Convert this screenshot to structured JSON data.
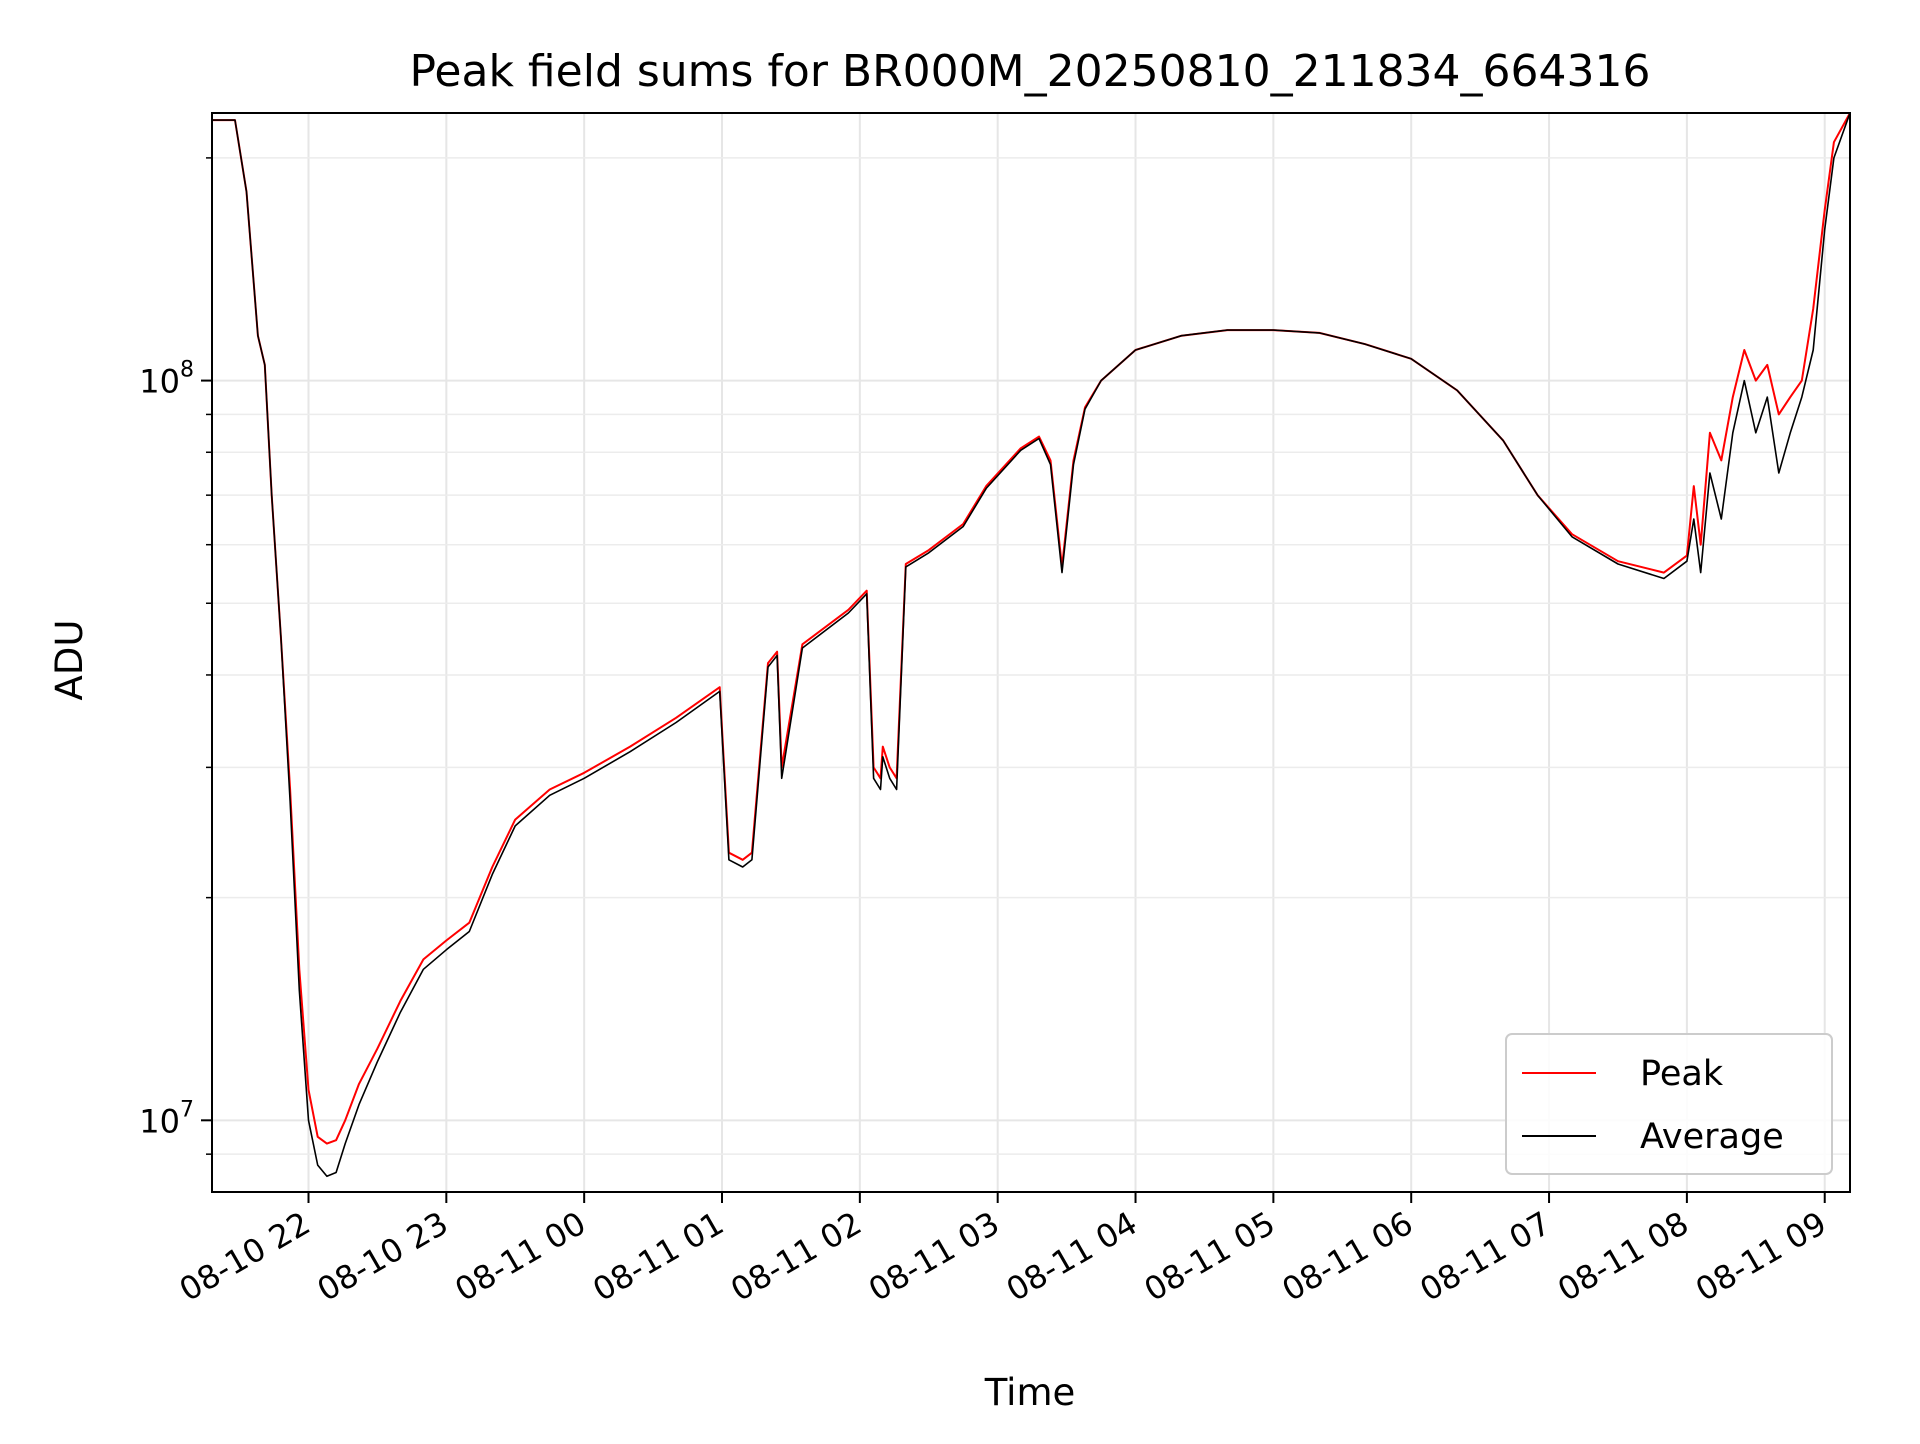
{
  "chart_data": {
    "type": "line",
    "title": "Peak field sums for BR000M_20250810_211834_664316",
    "xlabel": "Time",
    "ylabel": "ADU",
    "y_scale": "log",
    "ylim": [
      8000000,
      230000000
    ],
    "xlim": [
      "2025-08-10 21:18",
      "2025-08-11 09:11"
    ],
    "x_tick_labels": [
      "08-10 22",
      "08-10 23",
      "08-11 00",
      "08-11 01",
      "08-11 02",
      "08-11 03",
      "08-11 04",
      "08-11 05",
      "08-11 06",
      "08-11 07",
      "08-11 08",
      "08-11 09"
    ],
    "x_ticks": [
      "2025-08-10 22:00",
      "2025-08-10 23:00",
      "2025-08-11 00:00",
      "2025-08-11 01:00",
      "2025-08-11 02:00",
      "2025-08-11 03:00",
      "2025-08-11 04:00",
      "2025-08-11 05:00",
      "2025-08-11 06:00",
      "2025-08-11 07:00",
      "2025-08-11 08:00",
      "2025-08-11 09:00"
    ],
    "y_tick_labels": [
      {
        "base": "10",
        "exp": "7",
        "value": 10000000
      },
      {
        "base": "10",
        "exp": "8",
        "value": 100000000
      }
    ],
    "grid": true,
    "legend": "lower-right",
    "series": [
      {
        "name": "Peak",
        "color": "#ff0000",
        "x": [
          "2025-08-10 21:18",
          "2025-08-10 21:28",
          "2025-08-10 21:33",
          "2025-08-10 21:38",
          "2025-08-10 21:41",
          "2025-08-10 21:44",
          "2025-08-10 21:48",
          "2025-08-10 21:52",
          "2025-08-10 21:56",
          "2025-08-10 22:00",
          "2025-08-10 22:04",
          "2025-08-10 22:08",
          "2025-08-10 22:12",
          "2025-08-10 22:16",
          "2025-08-10 22:22",
          "2025-08-10 22:30",
          "2025-08-10 22:40",
          "2025-08-10 22:50",
          "2025-08-10 23:00",
          "2025-08-10 23:10",
          "2025-08-10 23:20",
          "2025-08-10 23:30",
          "2025-08-10 23:45",
          "2025-08-11 00:00",
          "2025-08-11 00:20",
          "2025-08-11 00:40",
          "2025-08-11 00:59",
          "2025-08-11 01:03",
          "2025-08-11 01:09",
          "2025-08-11 01:13",
          "2025-08-11 01:20",
          "2025-08-11 01:24",
          "2025-08-11 01:26",
          "2025-08-11 01:35",
          "2025-08-11 01:55",
          "2025-08-11 02:03",
          "2025-08-11 02:06",
          "2025-08-11 02:09",
          "2025-08-11 02:10",
          "2025-08-11 02:13",
          "2025-08-11 02:16",
          "2025-08-11 02:20",
          "2025-08-11 02:30",
          "2025-08-11 02:45",
          "2025-08-11 02:55",
          "2025-08-11 03:10",
          "2025-08-11 03:18",
          "2025-08-11 03:23",
          "2025-08-11 03:28",
          "2025-08-11 03:33",
          "2025-08-11 03:38",
          "2025-08-11 03:45",
          "2025-08-11 04:00",
          "2025-08-11 04:20",
          "2025-08-11 04:40",
          "2025-08-11 05:00",
          "2025-08-11 05:20",
          "2025-08-11 05:40",
          "2025-08-11 06:00",
          "2025-08-11 06:20",
          "2025-08-11 06:40",
          "2025-08-11 06:55",
          "2025-08-11 07:10",
          "2025-08-11 07:30",
          "2025-08-11 07:50",
          "2025-08-11 08:00",
          "2025-08-11 08:03",
          "2025-08-11 08:06",
          "2025-08-11 08:10",
          "2025-08-11 08:15",
          "2025-08-11 08:20",
          "2025-08-11 08:25",
          "2025-08-11 08:30",
          "2025-08-11 08:35",
          "2025-08-11 08:40",
          "2025-08-11 08:45",
          "2025-08-11 08:50",
          "2025-08-11 08:55",
          "2025-08-11 09:00",
          "2025-08-11 09:04",
          "2025-08-11 09:11"
        ],
        "values": [
          225000000,
          225000000,
          180000000,
          115000000,
          105000000,
          70000000,
          45000000,
          28000000,
          16000000,
          11000000,
          9500000,
          9300000,
          9400000,
          10000000,
          11200000,
          12500000,
          14500000,
          16500000,
          17500000,
          18500000,
          22000000,
          25500000,
          28000000,
          29500000,
          32000000,
          35000000,
          38500000,
          23000000,
          22500000,
          23000000,
          41500000,
          43000000,
          30000000,
          44000000,
          49000000,
          52000000,
          30000000,
          29000000,
          32000000,
          30000000,
          29000000,
          56500000,
          59000000,
          64000000,
          72000000,
          81000000,
          84000000,
          78000000,
          56000000,
          78000000,
          92000000,
          100000000,
          110000000,
          115000000,
          117000000,
          117000000,
          116000000,
          112000000,
          107000000,
          97000000,
          83000000,
          70000000,
          62000000,
          57000000,
          55000000,
          58000000,
          72000000,
          60000000,
          85000000,
          78000000,
          95000000,
          110000000,
          100000000,
          105000000,
          90000000,
          95000000,
          100000000,
          125000000,
          170000000,
          210000000,
          230000000
        ]
      },
      {
        "name": "Average",
        "color": "#000000",
        "x": [
          "2025-08-10 21:18",
          "2025-08-10 21:28",
          "2025-08-10 21:33",
          "2025-08-10 21:38",
          "2025-08-10 21:41",
          "2025-08-10 21:44",
          "2025-08-10 21:48",
          "2025-08-10 21:52",
          "2025-08-10 21:56",
          "2025-08-10 22:00",
          "2025-08-10 22:04",
          "2025-08-10 22:08",
          "2025-08-10 22:12",
          "2025-08-10 22:16",
          "2025-08-10 22:22",
          "2025-08-10 22:30",
          "2025-08-10 22:40",
          "2025-08-10 22:50",
          "2025-08-10 23:00",
          "2025-08-10 23:10",
          "2025-08-10 23:20",
          "2025-08-10 23:30",
          "2025-08-10 23:45",
          "2025-08-11 00:00",
          "2025-08-11 00:20",
          "2025-08-11 00:40",
          "2025-08-11 00:59",
          "2025-08-11 01:03",
          "2025-08-11 01:09",
          "2025-08-11 01:13",
          "2025-08-11 01:20",
          "2025-08-11 01:24",
          "2025-08-11 01:26",
          "2025-08-11 01:35",
          "2025-08-11 01:55",
          "2025-08-11 02:03",
          "2025-08-11 02:06",
          "2025-08-11 02:09",
          "2025-08-11 02:10",
          "2025-08-11 02:13",
          "2025-08-11 02:16",
          "2025-08-11 02:20",
          "2025-08-11 02:30",
          "2025-08-11 02:45",
          "2025-08-11 02:55",
          "2025-08-11 03:10",
          "2025-08-11 03:18",
          "2025-08-11 03:23",
          "2025-08-11 03:28",
          "2025-08-11 03:33",
          "2025-08-11 03:38",
          "2025-08-11 03:45",
          "2025-08-11 04:00",
          "2025-08-11 04:20",
          "2025-08-11 04:40",
          "2025-08-11 05:00",
          "2025-08-11 05:20",
          "2025-08-11 05:40",
          "2025-08-11 06:00",
          "2025-08-11 06:20",
          "2025-08-11 06:40",
          "2025-08-11 06:55",
          "2025-08-11 07:10",
          "2025-08-11 07:30",
          "2025-08-11 07:50",
          "2025-08-11 08:00",
          "2025-08-11 08:03",
          "2025-08-11 08:06",
          "2025-08-11 08:10",
          "2025-08-11 08:15",
          "2025-08-11 08:20",
          "2025-08-11 08:25",
          "2025-08-11 08:30",
          "2025-08-11 08:35",
          "2025-08-11 08:40",
          "2025-08-11 08:45",
          "2025-08-11 08:50",
          "2025-08-11 08:55",
          "2025-08-11 09:00",
          "2025-08-11 09:04",
          "2025-08-11 09:11"
        ],
        "values": [
          225000000,
          225000000,
          180000000,
          115000000,
          105000000,
          70000000,
          45000000,
          27000000,
          15000000,
          10000000,
          8700000,
          8400000,
          8500000,
          9300000,
          10500000,
          12000000,
          14000000,
          16000000,
          17000000,
          18000000,
          21500000,
          25000000,
          27500000,
          29000000,
          31500000,
          34500000,
          38000000,
          22500000,
          22000000,
          22500000,
          41000000,
          42500000,
          29000000,
          43500000,
          48500000,
          51500000,
          29000000,
          28000000,
          31000000,
          29000000,
          28000000,
          56000000,
          58500000,
          63500000,
          71500000,
          80500000,
          83500000,
          77000000,
          55000000,
          77000000,
          91500000,
          100000000,
          110000000,
          115000000,
          117000000,
          117000000,
          116000000,
          112000000,
          107000000,
          97000000,
          83000000,
          70000000,
          61500000,
          56500000,
          54000000,
          57000000,
          65000000,
          55000000,
          75000000,
          65000000,
          85000000,
          100000000,
          85000000,
          95000000,
          75000000,
          85000000,
          95000000,
          110000000,
          160000000,
          200000000,
          230000000
        ]
      }
    ]
  }
}
